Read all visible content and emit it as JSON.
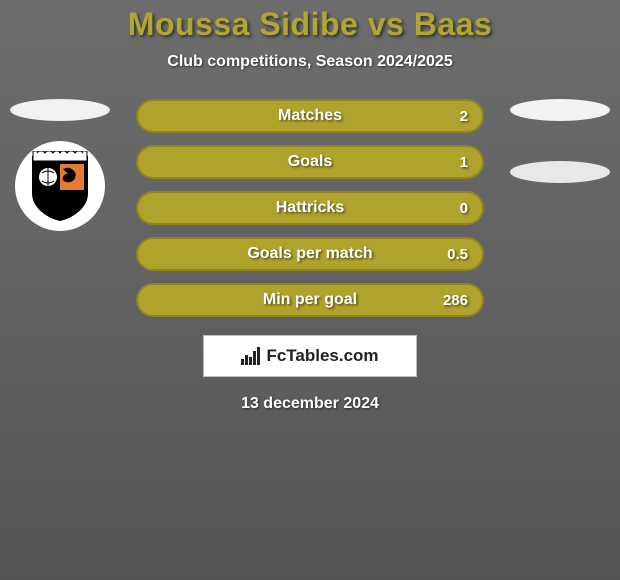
{
  "header": {
    "title": "Moussa Sidibe vs Baas",
    "title_color": "#b2a633",
    "subtitle": "Club competitions, Season 2024/2025",
    "subtitle_color": "#ffffff"
  },
  "background": {
    "top_color": "#6d6d6d",
    "bottom_color": "#555555"
  },
  "left_player": {
    "flag_color": "#f2f2f2",
    "club_bg": "#ffffff",
    "club_shield_fill": "#000000",
    "club_shield_panel": "#e57a31",
    "club_shield_ball": "#ffffff"
  },
  "right_player": {
    "flag_color": "#f2f2f2",
    "blank_color": "#e9e9e9"
  },
  "stats": {
    "bar_bg": "#afa22d",
    "bar_border": "#8f841f",
    "text_color": "#ffffff",
    "rows": [
      {
        "label": "Matches",
        "left": "",
        "right": "2"
      },
      {
        "label": "Goals",
        "left": "",
        "right": "1"
      },
      {
        "label": "Hattricks",
        "left": "",
        "right": "0"
      },
      {
        "label": "Goals per match",
        "left": "",
        "right": "0.5"
      },
      {
        "label": "Min per goal",
        "left": "",
        "right": "286"
      }
    ]
  },
  "brand": {
    "text": "FcTables.com",
    "box_bg": "#ffffff",
    "box_border": "#bdbdbd",
    "icon_color": "#222222",
    "text_color": "#222222"
  },
  "footer": {
    "date": "13 december 2024",
    "date_color": "#ffffff"
  }
}
